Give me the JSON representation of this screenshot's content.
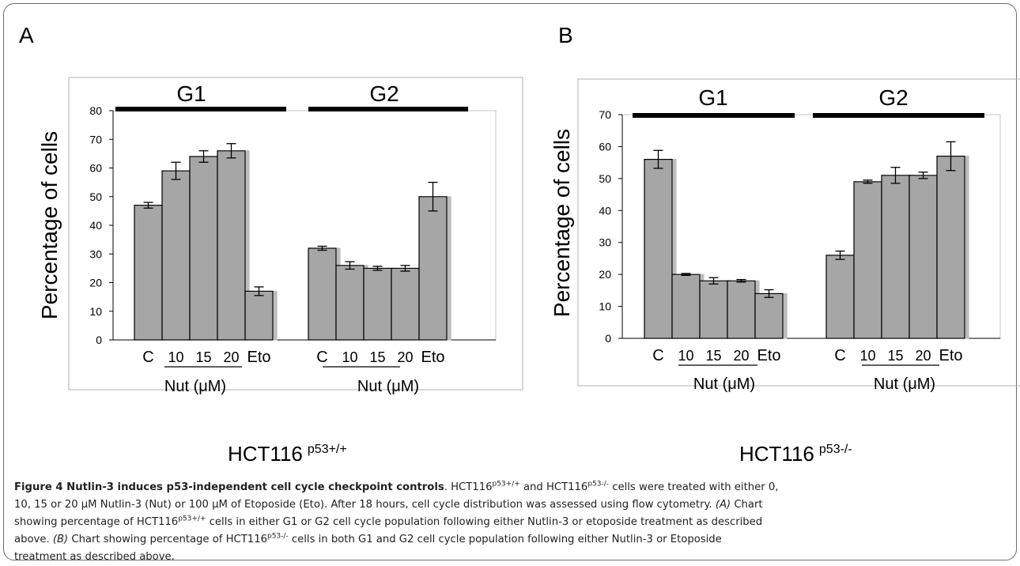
{
  "chart_data": [
    {
      "type": "bar",
      "panel": "A",
      "ylabel": "Percentage of cells",
      "ylim": [
        0,
        80
      ],
      "yticks": [
        0,
        10,
        20,
        30,
        40,
        50,
        60,
        70,
        80
      ],
      "grid": false,
      "groups": [
        {
          "label": "G1",
          "categories": [
            "C",
            "10",
            "15",
            "20",
            "Eto"
          ],
          "values": [
            47,
            59,
            64,
            66,
            17
          ],
          "errors": [
            1,
            3,
            2,
            2.5,
            1.5
          ],
          "xlabel": "Nut (μM)"
        },
        {
          "label": "G2",
          "categories": [
            "C",
            "10",
            "15",
            "20",
            "Eto"
          ],
          "values": [
            32,
            26,
            25,
            25,
            50
          ],
          "errors": [
            0.7,
            1.3,
            0.7,
            1,
            5
          ],
          "xlabel": "Nut (μM)"
        }
      ],
      "cell_line": "HCT116",
      "cell_line_sup": "p53+/+",
      "bar_color": "#a6a6a6"
    },
    {
      "type": "bar",
      "panel": "B",
      "ylabel": "Percentage of cells",
      "ylim": [
        0,
        70
      ],
      "yticks": [
        0,
        10,
        20,
        30,
        40,
        50,
        60,
        70
      ],
      "grid": false,
      "groups": [
        {
          "label": "G1",
          "categories": [
            "C",
            "10",
            "15",
            "20",
            "Eto"
          ],
          "values": [
            56,
            20,
            18,
            18,
            14
          ],
          "errors": [
            2.8,
            0.3,
            1,
            0.4,
            1.2
          ],
          "xlabel": "Nut (μM)"
        },
        {
          "label": "G2",
          "categories": [
            "C",
            "10",
            "15",
            "20",
            "Eto"
          ],
          "values": [
            26,
            49,
            51,
            51,
            57
          ],
          "errors": [
            1.3,
            0.5,
            2.5,
            1,
            4.5
          ],
          "xlabel": "Nut (μM)"
        }
      ],
      "cell_line": "HCT116",
      "cell_line_sup": "p53-/-",
      "bar_color": "#a6a6a6"
    }
  ],
  "caption": {
    "title": "Figure 4 Nutlin-3 induces p53-independent cell cycle checkpoint controls",
    "lines": [
      [
        {
          "t": "HCT116"
        },
        {
          "sup": "p53+/+"
        },
        {
          "t": " and HCT116"
        },
        {
          "sup": "p53-/-"
        },
        {
          "t": " cells were treated with either 0,"
        }
      ],
      [
        {
          "t": "10, 15 or 20 μM Nutlin-3 (Nut) or 100 μM of Etoposide (Eto). After 18 hours, cell cycle distribution was assessed using flow cytometry. "
        },
        {
          "i": "(A)"
        },
        {
          "t": " Chart"
        }
      ],
      [
        {
          "t": "showing percentage of HCT116"
        },
        {
          "sup": "p53+/+"
        },
        {
          "t": " cells in either G1 or G2 cell cycle population following either Nutlin-3 or etoposide treatment as described"
        }
      ],
      [
        {
          "t": "above. "
        },
        {
          "i": "(B)"
        },
        {
          "t": " Chart showing percentage of HCT116"
        },
        {
          "sup": "p53-/-"
        },
        {
          "t": " cells in both G1 and G2 cell cycle population following either Nutlin-3 or Etoposide"
        }
      ],
      [
        {
          "t": "treatment as described above."
        }
      ]
    ]
  }
}
